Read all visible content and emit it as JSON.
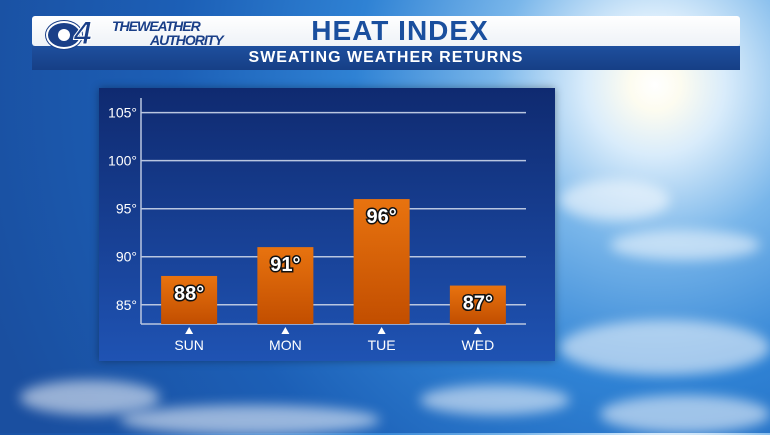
{
  "header": {
    "logo_number": "4",
    "logo_line1": "THEWEATHER",
    "logo_line2": "AUTHORITY",
    "title": "HEAT INDEX",
    "subtitle": "SWEATING WEATHER RETURNS"
  },
  "chart_data": {
    "type": "bar",
    "title": "HEAT INDEX",
    "subtitle": "SWEATING WEATHER RETURNS",
    "categories": [
      "SUN",
      "MON",
      "TUE",
      "WED"
    ],
    "values": [
      88,
      91,
      96,
      87
    ],
    "data_labels": [
      "88°",
      "91°",
      "96°",
      "87°"
    ],
    "ylim": [
      83,
      106
    ],
    "yticks": [
      85,
      90,
      95,
      100,
      105
    ],
    "ytick_labels": [
      "85°",
      "90°",
      "95°",
      "100°",
      "105°"
    ],
    "grid": true,
    "legend": "none",
    "colors": {
      "bar_top": "#e8730f",
      "bar_bottom": "#c24e00",
      "grid": "#b9c6e0",
      "text": "#ffffff"
    }
  }
}
